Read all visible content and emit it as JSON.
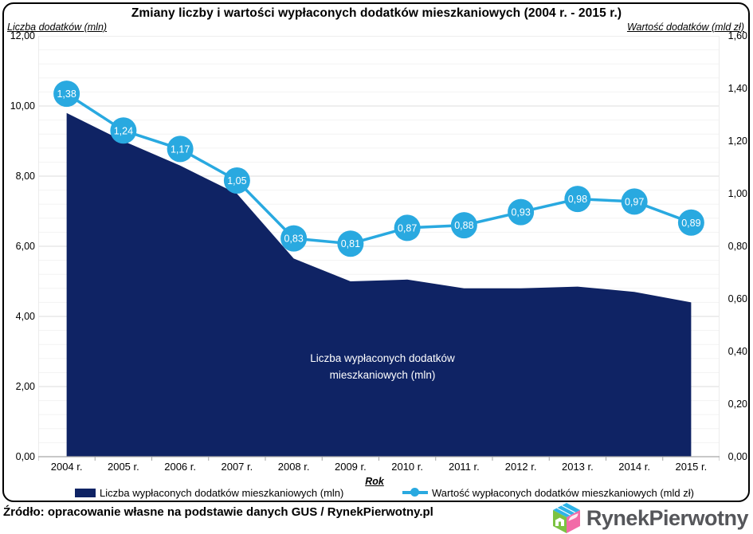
{
  "chart_data": {
    "type": "combo-area-line",
    "title": "Zmiany liczby i wartości wypłaconych dodatków mieszkaniowych (2004 r. - 2015 r.)",
    "categories": [
      "2004 r.",
      "2005 r.",
      "2006 r.",
      "2007 r.",
      "2008 r.",
      "2009 r.",
      "2010 r.",
      "2011 r.",
      "2012 r.",
      "2013 r.",
      "2014 r.",
      "2015 r."
    ],
    "x_title": "Rok",
    "left_axis": {
      "title": "Liczba dodatków (mln)",
      "lim": [
        0,
        12
      ],
      "tick_labels": [
        "12,00",
        "10,00",
        "8,00",
        "6,00",
        "4,00",
        "2,00",
        "0,00"
      ]
    },
    "right_axis": {
      "title": "Wartość dodatków (mld zł)",
      "lim": [
        0,
        1.6
      ],
      "tick_labels": [
        "1,60",
        "1,40",
        "1,20",
        "1,00",
        "0,80",
        "0,60",
        "0,40",
        "0,20",
        "0,00"
      ]
    },
    "series": [
      {
        "name": "Liczba wypłaconych dodatków mieszkaniowych (mln)",
        "type": "area",
        "axis": "left",
        "color": "#0f2364",
        "values": [
          9.8,
          9.0,
          8.3,
          7.5,
          5.65,
          5.0,
          5.05,
          4.8,
          4.8,
          4.85,
          4.7,
          4.4
        ],
        "area_label_lines": [
          "Liczba wypłaconych dodatków",
          "mieszkaniowych (mln)"
        ]
      },
      {
        "name": "Wartość wypłaconych dodatków mieszkaniowych (mld zł)",
        "type": "line",
        "axis": "right",
        "color": "#29a9e0",
        "values": [
          1.38,
          1.24,
          1.17,
          1.05,
          0.83,
          0.81,
          0.87,
          0.88,
          0.93,
          0.98,
          0.97,
          0.89
        ],
        "point_labels": [
          "1,38",
          "1,24",
          "1,17",
          "1,05",
          "0,83",
          "0,81",
          "0,87",
          "0,88",
          "0,93",
          "0,98",
          "0,97",
          "0,89"
        ]
      }
    ],
    "grid": {
      "major_color": "#dcdcdc",
      "minor_color": "#f3f3f3",
      "axis_color": "#a6a6a6"
    }
  },
  "footer": {
    "source": "Źródło: opracowanie własne na podstawie danych GUS / RynekPierwotny.pl",
    "logo_text": "RynekPierwotny"
  }
}
